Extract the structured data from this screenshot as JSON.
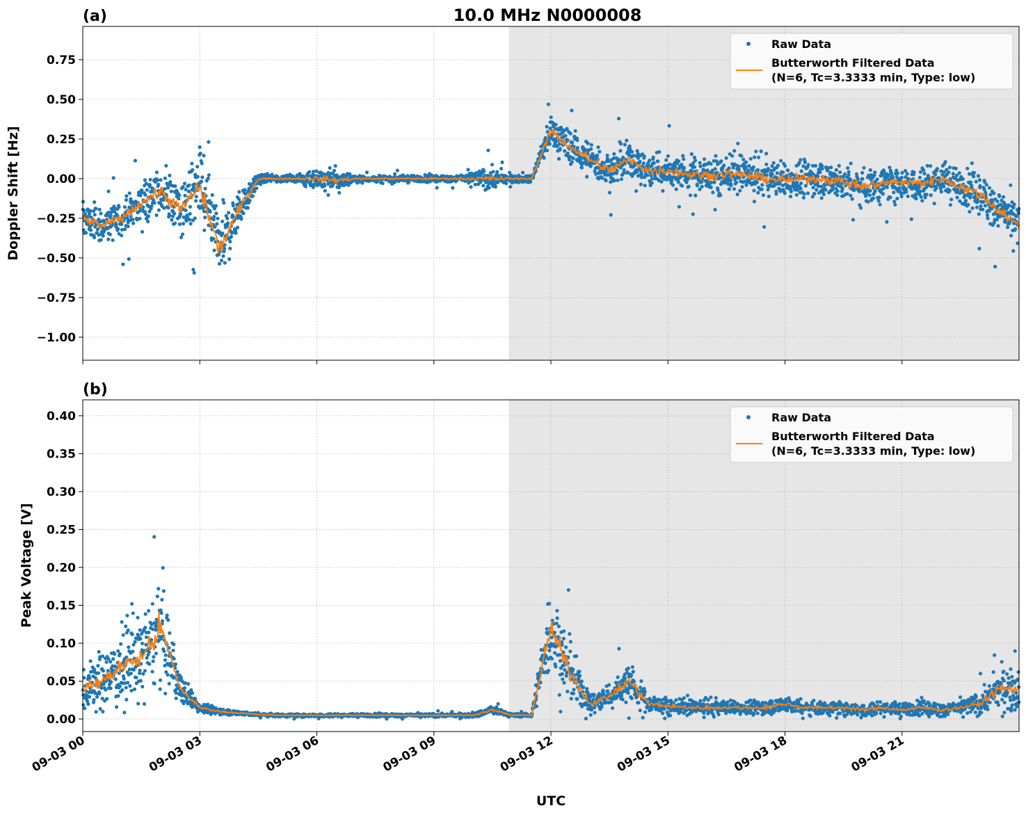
{
  "title": "10.0 MHz N0000008",
  "colors": {
    "raw": "#1f77b4",
    "filtered": "#ff7f0e",
    "shade": "#e6e6e6"
  },
  "chart_data": [
    {
      "type": "scatter",
      "panel_label": "(a)",
      "ylabel": "Doppler Shift [Hz]",
      "xlabel": "",
      "xlim_hours": [
        0,
        24
      ],
      "ylim": [
        -1.145,
        0.96
      ],
      "yticks": [
        "0.75",
        "0.50",
        "0.25",
        "0.00",
        "−0.25",
        "−0.50",
        "−0.75",
        "−1.00"
      ],
      "ytick_values": [
        0.75,
        0.5,
        0.25,
        0,
        -0.25,
        -0.5,
        -0.75,
        -1.0
      ],
      "grid": true,
      "shaded_from_hour": 10.92,
      "legend": {
        "position": "top-right",
        "raw": "Raw Data",
        "filtered_line1": "Butterworth Filtered Data",
        "filtered_line2": "(N=6, Tc=3.3333 min, Type: low)"
      },
      "x_hours": [
        0,
        0.5,
        1,
        1.5,
        2,
        2.5,
        3,
        3.5,
        4,
        4.5,
        5,
        5.5,
        6,
        6.5,
        7,
        7.5,
        8,
        8.5,
        9,
        9.5,
        10,
        10.5,
        11,
        11.5,
        12,
        12.5,
        13,
        13.5,
        14,
        14.5,
        15,
        15.5,
        16,
        16.5,
        17,
        17.5,
        18,
        18.5,
        19,
        19.5,
        20,
        20.5,
        21,
        21.5,
        22,
        22.5,
        23,
        23.5,
        24
      ],
      "filtered": [
        -0.25,
        -0.3,
        -0.25,
        -0.15,
        -0.08,
        -0.2,
        -0.05,
        -0.45,
        -0.2,
        0,
        0,
        0,
        0,
        -0.01,
        0,
        0,
        0,
        0,
        0,
        0,
        0,
        0,
        0,
        0,
        0.3,
        0.2,
        0.12,
        0.05,
        0.12,
        0.05,
        0.05,
        0.03,
        0.02,
        0.03,
        0.02,
        0,
        -0.01,
        0,
        0,
        -0.02,
        -0.05,
        -0.03,
        -0.02,
        -0.03,
        0,
        -0.05,
        -0.1,
        -0.2,
        -0.3
      ],
      "raw_spread": [
        0.15,
        0.15,
        0.15,
        0.18,
        0.2,
        0.25,
        0.3,
        0.3,
        0.2,
        0.04,
        0.03,
        0.03,
        0.1,
        0.1,
        0.03,
        0.03,
        0.03,
        0.03,
        0.03,
        0.03,
        0.06,
        0.1,
        0.03,
        0.03,
        0.15,
        0.15,
        0.15,
        0.15,
        0.15,
        0.15,
        0.16,
        0.16,
        0.16,
        0.16,
        0.16,
        0.16,
        0.16,
        0.16,
        0.16,
        0.16,
        0.16,
        0.16,
        0.16,
        0.16,
        0.16,
        0.16,
        0.18,
        0.2,
        0.2
      ]
    },
    {
      "type": "scatter",
      "panel_label": "(b)",
      "ylabel": "Peak Voltage [V]",
      "xlabel": "UTC",
      "xlim_hours": [
        0,
        24
      ],
      "ylim": [
        -0.0165,
        0.421
      ],
      "yticks": [
        "0.40",
        "0.35",
        "0.30",
        "0.25",
        "0.20",
        "0.15",
        "0.10",
        "0.05",
        "0.00"
      ],
      "ytick_values": [
        0.4,
        0.35,
        0.3,
        0.25,
        0.2,
        0.15,
        0.1,
        0.05,
        0
      ],
      "xticks": [
        "09-03 00",
        "09-03 03",
        "09-03 06",
        "09-03 09",
        "09-03 12",
        "09-03 15",
        "09-03 18",
        "09-03 21"
      ],
      "xtick_hours": [
        0,
        3,
        6,
        9,
        12,
        15,
        18,
        21
      ],
      "grid": true,
      "shaded_from_hour": 10.92,
      "legend": {
        "position": "top-right",
        "raw": "Raw Data",
        "filtered_line1": "Butterworth Filtered Data",
        "filtered_line2": "(N=6, Tc=3.3333 min, Type: low)"
      },
      "x_hours": [
        0,
        0.5,
        1,
        1.5,
        2,
        2.5,
        3,
        3.5,
        4,
        4.5,
        5,
        5.5,
        6,
        6.5,
        7,
        7.5,
        8,
        8.5,
        9,
        9.5,
        10,
        10.5,
        11,
        11.5,
        12,
        12.5,
        13,
        13.5,
        14,
        14.5,
        15,
        15.5,
        16,
        16.5,
        17,
        17.5,
        18,
        18.5,
        19,
        19.5,
        20,
        20.5,
        21,
        21.5,
        22,
        22.5,
        23,
        23.5,
        24
      ],
      "filtered": [
        0.04,
        0.05,
        0.07,
        0.08,
        0.12,
        0.04,
        0.015,
        0.01,
        0.008,
        0.006,
        0.005,
        0.005,
        0.005,
        0.005,
        0.005,
        0.005,
        0.005,
        0.005,
        0.005,
        0.005,
        0.005,
        0.012,
        0.005,
        0.005,
        0.12,
        0.06,
        0.02,
        0.03,
        0.05,
        0.02,
        0.017,
        0.015,
        0.015,
        0.015,
        0.015,
        0.015,
        0.02,
        0.015,
        0.015,
        0.015,
        0.012,
        0.015,
        0.012,
        0.015,
        0.012,
        0.015,
        0.02,
        0.04,
        0.04
      ],
      "raw_spread": [
        0.04,
        0.05,
        0.06,
        0.08,
        0.1,
        0.03,
        0.01,
        0.006,
        0.004,
        0.003,
        0.003,
        0.003,
        0.003,
        0.003,
        0.003,
        0.003,
        0.003,
        0.003,
        0.003,
        0.003,
        0.003,
        0.008,
        0.003,
        0.003,
        0.08,
        0.05,
        0.02,
        0.02,
        0.04,
        0.015,
        0.015,
        0.013,
        0.013,
        0.013,
        0.013,
        0.013,
        0.015,
        0.013,
        0.013,
        0.013,
        0.013,
        0.013,
        0.013,
        0.013,
        0.013,
        0.013,
        0.02,
        0.035,
        0.04
      ]
    }
  ]
}
